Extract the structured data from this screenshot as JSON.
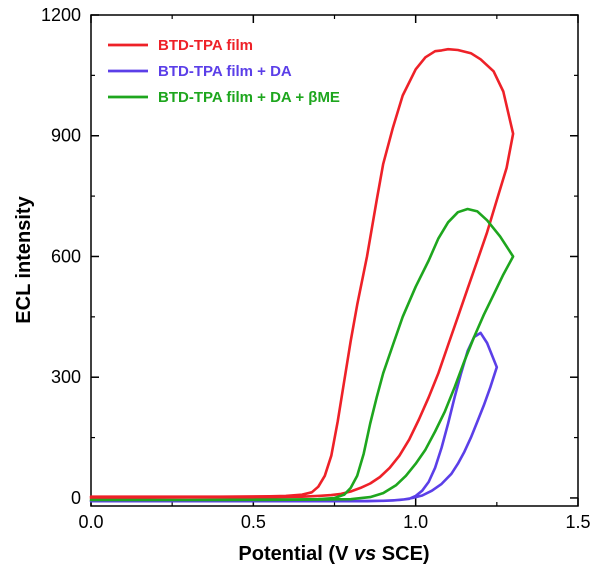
{
  "chart_data": {
    "type": "line",
    "title": "",
    "xlabel_parts": [
      "Potential (V ",
      "vs",
      " SCE)"
    ],
    "ylabel": "ECL intensity",
    "xlim": [
      0.0,
      1.5
    ],
    "ylim": [
      -20,
      1200
    ],
    "xticks": [
      0.0,
      0.5,
      1.0,
      1.5
    ],
    "xtick_labels": [
      "0.0",
      "0.5",
      "1.0",
      "1.5"
    ],
    "yticks": [
      0,
      300,
      600,
      900,
      1200
    ],
    "ytick_labels": [
      "0",
      "300",
      "600",
      "900",
      "1200"
    ],
    "grid": false,
    "legend_position": "top-left",
    "series": [
      {
        "name": "BTD-TPA film",
        "color": "#ee2128",
        "x": [
          0.0,
          0.2,
          0.4,
          0.55,
          0.6,
          0.65,
          0.68,
          0.7,
          0.72,
          0.74,
          0.76,
          0.78,
          0.8,
          0.82,
          0.85,
          0.88,
          0.9,
          0.93,
          0.96,
          1.0,
          1.03,
          1.06,
          1.08,
          1.1,
          1.13,
          1.17,
          1.2,
          1.24,
          1.27,
          1.3,
          1.28,
          1.25,
          1.22,
          1.19,
          1.16,
          1.13,
          1.1,
          1.07,
          1.04,
          1.01,
          0.98,
          0.95,
          0.92,
          0.89,
          0.86,
          0.83,
          0.8,
          0.77,
          0.74,
          0.7,
          0.65,
          0.6,
          0.5,
          0.3,
          0.0
        ],
        "y": [
          3,
          3,
          3,
          4,
          5,
          8,
          14,
          28,
          55,
          105,
          190,
          290,
          390,
          480,
          600,
          740,
          830,
          920,
          1000,
          1065,
          1095,
          1110,
          1112,
          1115,
          1113,
          1105,
          1090,
          1060,
          1010,
          905,
          820,
          740,
          660,
          590,
          520,
          450,
          380,
          310,
          250,
          195,
          145,
          105,
          75,
          52,
          36,
          25,
          16,
          10,
          7,
          5,
          3,
          2,
          1,
          1,
          0
        ]
      },
      {
        "name": "BTD-TPA film + DA",
        "color": "#5b3fe8",
        "x": [
          0.0,
          0.3,
          0.6,
          0.8,
          0.9,
          0.95,
          0.98,
          1.0,
          1.02,
          1.04,
          1.06,
          1.08,
          1.1,
          1.12,
          1.14,
          1.16,
          1.18,
          1.2,
          1.22,
          1.25,
          1.23,
          1.21,
          1.19,
          1.17,
          1.15,
          1.13,
          1.11,
          1.08,
          1.05,
          1.02,
          0.99,
          0.96,
          0.93,
          0.9,
          0.85,
          0.8,
          0.6,
          0.3,
          0.0
        ],
        "y": [
          -8,
          -8,
          -8,
          -8,
          -7,
          -5,
          -2,
          5,
          18,
          40,
          75,
          125,
          185,
          250,
          310,
          365,
          400,
          410,
          385,
          325,
          275,
          230,
          190,
          150,
          115,
          85,
          60,
          35,
          18,
          6,
          0,
          -4,
          -6,
          -7,
          -8,
          -8,
          -8,
          -8,
          -8
        ]
      },
      {
        "name": "BTD-TPA film + DA + βME",
        "color": "#1ea61e",
        "x": [
          0.0,
          0.3,
          0.6,
          0.7,
          0.75,
          0.78,
          0.8,
          0.82,
          0.84,
          0.86,
          0.88,
          0.9,
          0.93,
          0.96,
          1.0,
          1.04,
          1.07,
          1.1,
          1.13,
          1.16,
          1.19,
          1.22,
          1.26,
          1.3,
          1.27,
          1.24,
          1.21,
          1.18,
          1.15,
          1.12,
          1.09,
          1.06,
          1.03,
          1.0,
          0.97,
          0.94,
          0.9,
          0.86,
          0.8,
          0.7,
          0.5,
          0.2,
          0.0
        ],
        "y": [
          -5,
          -5,
          -4,
          -3,
          0,
          8,
          25,
          55,
          110,
          185,
          250,
          310,
          380,
          450,
          525,
          590,
          645,
          685,
          710,
          718,
          712,
          690,
          650,
          600,
          555,
          505,
          455,
          400,
          340,
          275,
          215,
          165,
          120,
          85,
          55,
          32,
          12,
          2,
          -3,
          -4,
          -5,
          -5,
          -5
        ]
      }
    ]
  }
}
